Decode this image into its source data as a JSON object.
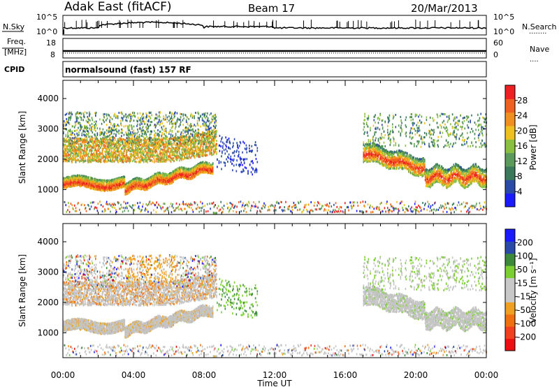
{
  "header": {
    "station": "Adak East (fitACF)",
    "beam": "Beam 17",
    "date": "20/Mar/2013"
  },
  "nsky_panel": {
    "left_label": "N.Sky",
    "left_ticks": [
      "10^5",
      "10^0"
    ],
    "right_ticks": [
      "10^5",
      "10^0"
    ],
    "right_label": "N.Search",
    "right_label_dots": "........"
  },
  "freq_panel": {
    "left_label_top": "Freq.",
    "left_label_bottom": "[MHz]",
    "left_ticks": [
      "18",
      "8"
    ],
    "right_ticks": [
      "60",
      "0"
    ],
    "right_label": "Nave",
    "right_label_dots": "...."
  },
  "cpid_panel": {
    "label": "CPID",
    "mode_text": "normalsound (fast) 157 RF"
  },
  "colors": {
    "power": [
      "#1a1aff",
      "#2a4aa8",
      "#3a7a5a",
      "#5a9a5a",
      "#8ac040",
      "#f0c020",
      "#f09020",
      "#f06020",
      "#ee2020"
    ],
    "velocity": [
      "#ee1010",
      "#f04020",
      "#f07010",
      "#f0a020",
      "#c8c8c8",
      "#c8c8c8",
      "#7ad030",
      "#3a8a3a",
      "#2a4aa8",
      "#1a1aff"
    ],
    "ground": "#c4c4c4"
  },
  "chart_data": [
    {
      "type": "heatmap",
      "title": "Power",
      "ylabel": "Slant Range [km]",
      "yticks": [
        "1000",
        "2000",
        "3000",
        "4000"
      ],
      "ylim": [
        180,
        4600
      ],
      "xlim": [
        0,
        24
      ],
      "colorbar": {
        "label": "Power [dB]",
        "ticks": [
          "4",
          "8",
          "12",
          "16",
          "20",
          "24",
          "28"
        ],
        "range": [
          0,
          32
        ]
      },
      "features": [
        {
          "name": "main-echo-band",
          "x_start": 0.0,
          "x_end": 8.5,
          "range_km_start": 1050,
          "range_km_end": 1600,
          "power_db": 28
        },
        {
          "name": "upper-echo-band",
          "x_start": 0.0,
          "x_end": 8.5,
          "range_km_start": 2000,
          "range_km_end": 2700,
          "power_db": 20
        },
        {
          "name": "high-range-echo",
          "x_start": 0.0,
          "x_end": 9.0,
          "range_km_start": 2600,
          "range_km_end": 3500,
          "power_db": 12
        },
        {
          "name": "late-evening-echo",
          "x_start": 17.0,
          "x_end": 24.0,
          "range_km_start": 1100,
          "range_km_end": 2600,
          "power_db": 26
        }
      ]
    },
    {
      "type": "heatmap",
      "title": "Velocity",
      "ylabel": "Slant Range [km]",
      "yticks": [
        "1000",
        "2000",
        "3000",
        "4000"
      ],
      "ylim": [
        180,
        4600
      ],
      "xlim": [
        0,
        24
      ],
      "colorbar": {
        "label": "Velocity [m s⁻¹]",
        "ticks": [
          "-200",
          "-100",
          "-50",
          "-15",
          "15",
          "50",
          "100",
          "200"
        ],
        "range": [
          -250,
          250
        ]
      }
    }
  ],
  "xaxis": {
    "ticks": [
      "00:00",
      "04:00",
      "08:00",
      "12:00",
      "16:00",
      "20:00",
      "00:00"
    ],
    "tick_hours": [
      0,
      4,
      8,
      12,
      16,
      20,
      24
    ],
    "label": "Time UT"
  }
}
